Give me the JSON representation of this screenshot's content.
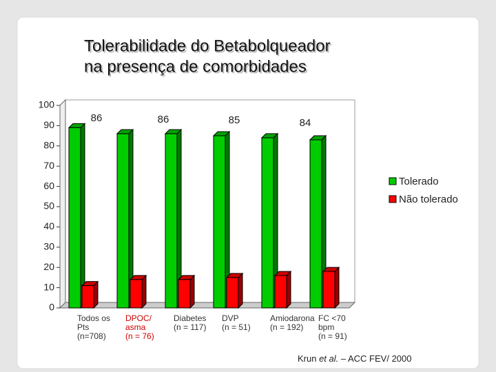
{
  "chart_data": {
    "type": "bar3d",
    "title": [
      "Tolerabilidade do Betabolqueador",
      "na presença de comorbidades"
    ],
    "categories": [
      [
        "Todos os",
        "Pts",
        "(n=708)"
      ],
      [
        "DPOC/",
        "asma",
        "(n = 76)"
      ],
      [
        "Diabetes",
        "(n = 117)"
      ],
      [
        "DVP",
        "(n = 51)"
      ],
      [
        "Amiodarona",
        "(n = 192)"
      ],
      [
        "FC <70",
        "bpm",
        "(n = 91)"
      ]
    ],
    "category_colors": [
      "#333333",
      "#cc0000",
      "#333333",
      "#333333",
      "#333333",
      "#333333"
    ],
    "series": [
      {
        "name": "Tolerado",
        "color": "#00cc00",
        "values": [
          89,
          86,
          86,
          85,
          84,
          83
        ]
      },
      {
        "name": "Não tolerado",
        "color": "#ff0000",
        "values": [
          11,
          14,
          14,
          15,
          16,
          18
        ]
      }
    ],
    "annotations": [
      "86",
      "86",
      "85",
      "84"
    ],
    "ylim": [
      0,
      100
    ],
    "yticks": [
      0,
      10,
      20,
      30,
      40,
      50,
      60,
      70,
      80,
      90,
      100
    ],
    "source": [
      "Krun ",
      "et al.",
      " – ACC FEV/ 2000"
    ]
  }
}
